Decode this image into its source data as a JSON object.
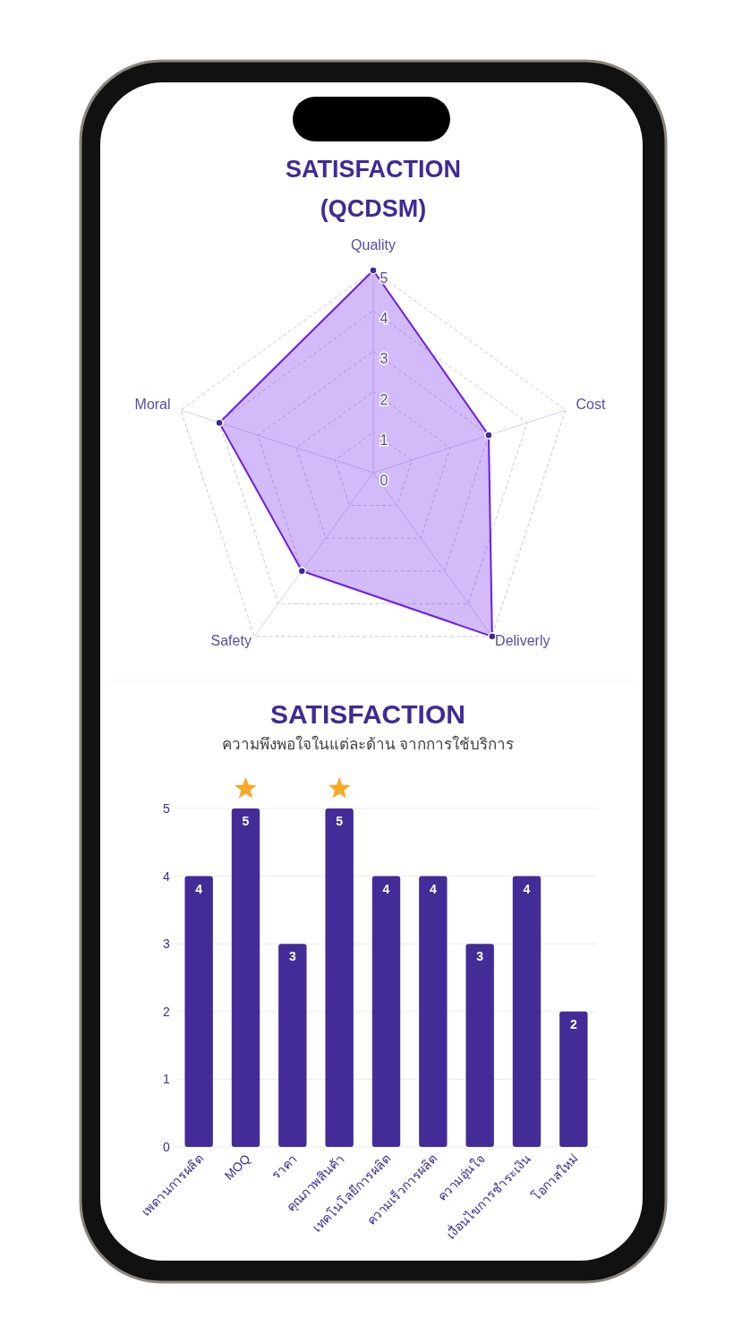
{
  "chart_data": [
    {
      "type": "radar",
      "title": "SATISFACTION (QCDSM)",
      "categories": [
        "Quality",
        "Cost",
        "Deliverly",
        "Safety",
        "Moral"
      ],
      "series": [
        {
          "color": "#6a1ee8",
          "values": [
            5,
            3,
            5,
            3,
            4
          ]
        }
      ],
      "ylim": [
        0,
        5
      ],
      "yticks": [
        0,
        1,
        2,
        3,
        4,
        5
      ],
      "grid": true,
      "marker": "circle",
      "line_style": "solid"
    },
    {
      "type": "bar",
      "title": "SATISFACTION",
      "subtitle": "ความพึงพอใจในแต่ละด้าน จากการใช้บริการ",
      "categories": [
        "เพดานการผลิต",
        "MOQ",
        "ราคา",
        "คุณภาพสินค้า",
        "เทคโนโลยีการผลิต",
        "ความเร็วการผลิต",
        "ความอุ่นใจ",
        "เงื่อนไขการชำระเงิน",
        "โอกาสใหม่"
      ],
      "values": [
        4,
        5,
        3,
        5,
        4,
        4,
        3,
        4,
        2
      ],
      "color": "#432c97",
      "ylim": [
        0,
        5
      ],
      "yticks": [
        0,
        1,
        2,
        3,
        4,
        5
      ],
      "grid": "y",
      "data_labels": true
    }
  ]
}
